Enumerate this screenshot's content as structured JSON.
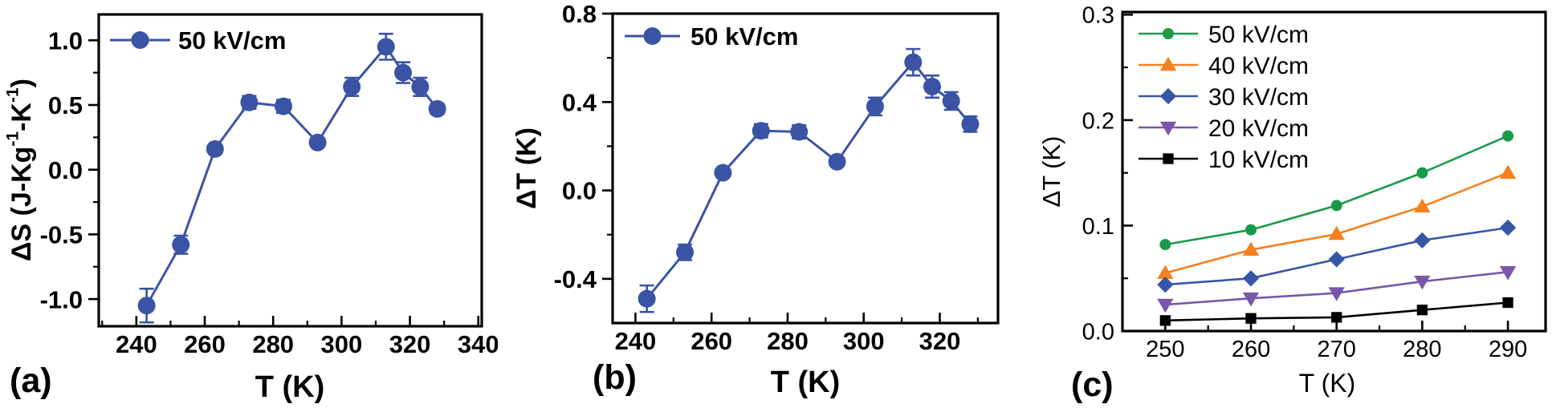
{
  "figure": {
    "background": "#ffffff",
    "axis_color": "#000000",
    "description": "Three-panel electrocaloric figure: entropy change and adiabatic temperature change versus temperature"
  },
  "chart_data": [
    {
      "type": "line",
      "panel_label": "(a)",
      "xlabel": "T (K)",
      "ylabel": "ΔS (J-Kg⁻¹-K⁻¹)",
      "ylabel_parts": [
        {
          "t": "ΔS (J-Kg"
        },
        {
          "t": "-1",
          "sup": true
        },
        {
          "t": "-K"
        },
        {
          "t": "-1",
          "sup": true
        },
        {
          "t": ")"
        }
      ],
      "xlim": [
        229,
        341
      ],
      "ylim": [
        -1.21,
        1.2
      ],
      "xticks": {
        "major": [
          240,
          260,
          280,
          300,
          320,
          340
        ],
        "minor": [
          230,
          250,
          270,
          290,
          310,
          330
        ]
      },
      "yticks": {
        "major": [
          {
            "v": 1.0,
            "label": "1.0"
          },
          {
            "v": 0.5,
            "label": "0.5"
          },
          {
            "v": 0.0,
            "label": "0.0"
          },
          {
            "v": -0.5,
            "label": "-0.5"
          },
          {
            "v": -1.0,
            "label": "-1.0"
          }
        ],
        "minor": [
          0.75,
          0.25,
          -0.25,
          -0.75
        ]
      },
      "grid": false,
      "legend_position": "top-left",
      "series": [
        {
          "name": "50 kV/cm",
          "color": "#3A53A4",
          "marker": "circle",
          "x": [
            243,
            253,
            263,
            273,
            283,
            293,
            303,
            313,
            318,
            323,
            328
          ],
          "y": [
            -1.05,
            -0.58,
            0.16,
            0.52,
            0.49,
            0.21,
            0.64,
            0.95,
            0.75,
            0.64,
            0.47
          ],
          "yerr": [
            0.13,
            0.07,
            0,
            0.05,
            0.05,
            0,
            0.07,
            0.1,
            0.08,
            0.07,
            0.04
          ]
        }
      ]
    },
    {
      "type": "line",
      "panel_label": "(b)",
      "xlabel": "T (K)",
      "ylabel": "ΔT (K)",
      "ylabel_parts": [
        {
          "t": "ΔT (K)"
        }
      ],
      "xlim": [
        234,
        335.3
      ],
      "ylim": [
        -0.6,
        0.8
      ],
      "xticks": {
        "major": [
          240,
          260,
          280,
          300,
          320
        ],
        "minor": [
          250,
          270,
          290,
          310,
          330
        ]
      },
      "yticks": {
        "major": [
          {
            "v": 0.8,
            "label": "0.8"
          },
          {
            "v": 0.4,
            "label": "0.4"
          },
          {
            "v": 0.0,
            "label": "0.0"
          },
          {
            "v": -0.4,
            "label": "-0.4"
          }
        ],
        "minor": [
          0.6,
          0.2,
          -0.2
        ]
      },
      "grid": false,
      "legend_position": "top-left",
      "series": [
        {
          "name": "50 kV/cm",
          "color": "#3A53A4",
          "marker": "circle",
          "x": [
            243,
            253,
            263,
            273,
            283,
            293,
            303,
            313,
            318,
            323,
            328
          ],
          "y": [
            -0.49,
            -0.28,
            0.08,
            0.27,
            0.265,
            0.13,
            0.38,
            0.58,
            0.47,
            0.405,
            0.3
          ],
          "yerr": [
            0.06,
            0.035,
            0,
            0.03,
            0.03,
            0,
            0.04,
            0.06,
            0.05,
            0.04,
            0.035
          ]
        }
      ]
    },
    {
      "type": "line",
      "panel_label": "(c)",
      "xlabel": "T (K)",
      "ylabel": "ΔT (K)",
      "ylabel_parts": [
        {
          "t": "ΔT (K)"
        }
      ],
      "xlim": [
        245,
        294.4
      ],
      "ylim": [
        0,
        0.3025
      ],
      "xticks": {
        "major": [
          250,
          260,
          270,
          280,
          290
        ],
        "minor": [
          255,
          265,
          275,
          285
        ]
      },
      "yticks": {
        "major": [
          {
            "v": 0.3,
            "label": "0.3"
          },
          {
            "v": 0.2,
            "label": "0.2"
          },
          {
            "v": 0.1,
            "label": "0.1"
          },
          {
            "v": 0.0,
            "label": "0.0"
          }
        ],
        "minor": [
          0.25,
          0.15,
          0.05
        ]
      },
      "grid": false,
      "legend_position": "top-left",
      "series": [
        {
          "name": "50 kV/cm",
          "color": "#189A4A",
          "marker": "circle",
          "x": [
            250,
            260,
            270,
            280,
            290
          ],
          "y": [
            0.082,
            0.096,
            0.119,
            0.15,
            0.185
          ]
        },
        {
          "name": "40 kV/cm",
          "color": "#F5801F",
          "marker": "triangle-up",
          "x": [
            250,
            260,
            270,
            280,
            290
          ],
          "y": [
            0.055,
            0.077,
            0.092,
            0.118,
            0.15
          ]
        },
        {
          "name": "30 kV/cm",
          "color": "#3757A6",
          "marker": "diamond",
          "x": [
            250,
            260,
            270,
            280,
            290
          ],
          "y": [
            0.044,
            0.05,
            0.068,
            0.086,
            0.098
          ]
        },
        {
          "name": "20 kV/cm",
          "color": "#7857A8",
          "marker": "triangle-down",
          "x": [
            250,
            260,
            270,
            280,
            290
          ],
          "y": [
            0.025,
            0.031,
            0.036,
            0.047,
            0.056
          ]
        },
        {
          "name": "10 kV/cm",
          "color": "#000000",
          "marker": "square",
          "x": [
            250,
            260,
            270,
            280,
            290
          ],
          "y": [
            0.01,
            0.012,
            0.013,
            0.02,
            0.027
          ]
        }
      ]
    }
  ]
}
